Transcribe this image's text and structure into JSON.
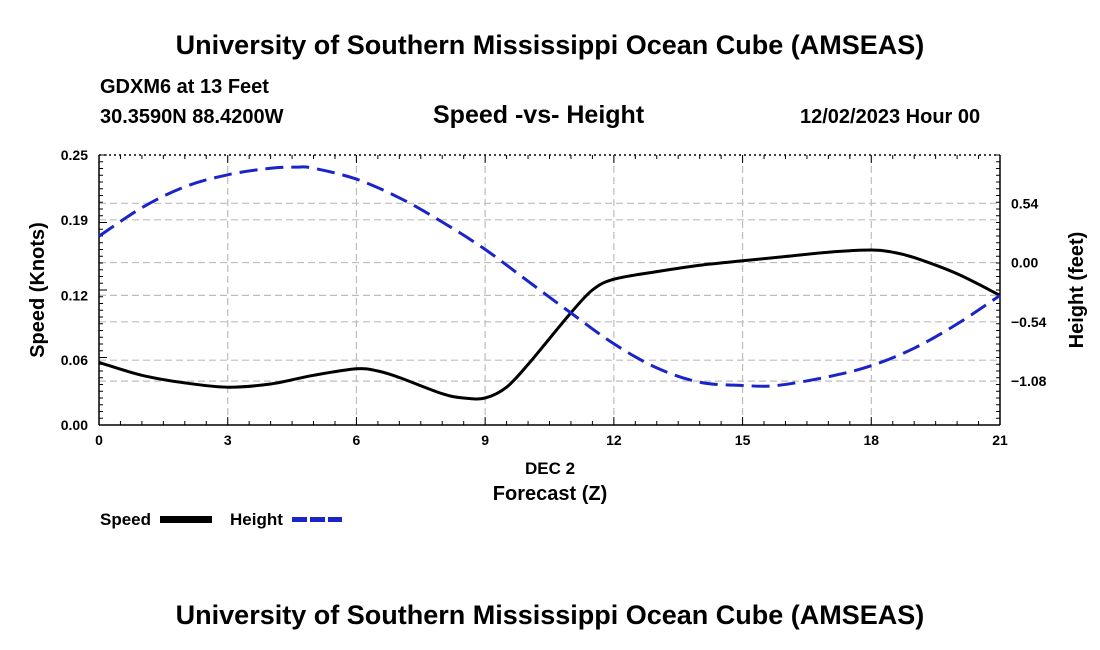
{
  "page": {
    "title_top": "University of Southern Mississippi Ocean Cube (AMSEAS)",
    "title_bottom": "University of Southern Mississippi Ocean Cube (AMSEAS)",
    "station": "GDXM6 at 13 Feet",
    "coords": "30.3590N  88.4200W",
    "datetime": "12/02/2023 Hour 00"
  },
  "chart_data": {
    "type": "line",
    "title": "Speed -vs- Height",
    "xlabel": "Forecast (Z)",
    "xlabel_date": "DEC 2",
    "ylabel": "Speed (Knots)",
    "y2label": "Height (feet)",
    "xlim": [
      0,
      21
    ],
    "ylim": [
      0,
      0.25
    ],
    "y2lim": [
      -1.48,
      0.98
    ],
    "x_ticks": [
      0,
      3,
      6,
      9,
      12,
      15,
      18,
      21
    ],
    "y_ticks": [
      0.0,
      0.06,
      0.12,
      0.19,
      0.25
    ],
    "y_tick_labels": [
      "0.00",
      "0.06",
      "0.12",
      "0.19",
      "0.25"
    ],
    "y2_ticks": [
      -1.08,
      -0.54,
      0.0,
      0.54
    ],
    "y2_tick_labels": [
      "−1.08",
      "−0.54",
      "0.00",
      "0.54"
    ],
    "grid": true,
    "series": [
      {
        "name": "Speed",
        "axis": "left",
        "color": "#000000",
        "style": "solid",
        "x": [
          0,
          1,
          2,
          3,
          4,
          5,
          6,
          6.5,
          7,
          8,
          8.5,
          9,
          9.5,
          10,
          10.5,
          11,
          11.5,
          12,
          13,
          14,
          15,
          16,
          17,
          18,
          18.5,
          19,
          20,
          21
        ],
        "y": [
          0.058,
          0.046,
          0.039,
          0.035,
          0.038,
          0.046,
          0.052,
          0.05,
          0.044,
          0.029,
          0.025,
          0.025,
          0.035,
          0.056,
          0.08,
          0.104,
          0.125,
          0.135,
          0.142,
          0.148,
          0.152,
          0.156,
          0.16,
          0.162,
          0.16,
          0.155,
          0.14,
          0.12
        ]
      },
      {
        "name": "Height",
        "axis": "right",
        "color": "#1a24c8",
        "style": "dashed",
        "x": [
          0,
          1,
          2,
          3,
          4,
          4.6,
          5,
          6,
          7,
          8,
          9,
          10,
          11,
          12,
          13,
          14,
          15,
          15.8,
          17,
          18,
          19,
          20,
          21
        ],
        "y": [
          0.24,
          0.5,
          0.69,
          0.8,
          0.86,
          0.87,
          0.86,
          0.76,
          0.59,
          0.37,
          0.12,
          -0.17,
          -0.46,
          -0.74,
          -0.96,
          -1.09,
          -1.12,
          -1.12,
          -1.04,
          -0.94,
          -0.78,
          -0.56,
          -0.3
        ]
      }
    ],
    "legend": {
      "position": "bottom-left",
      "items": [
        "Speed",
        "Height"
      ]
    }
  }
}
